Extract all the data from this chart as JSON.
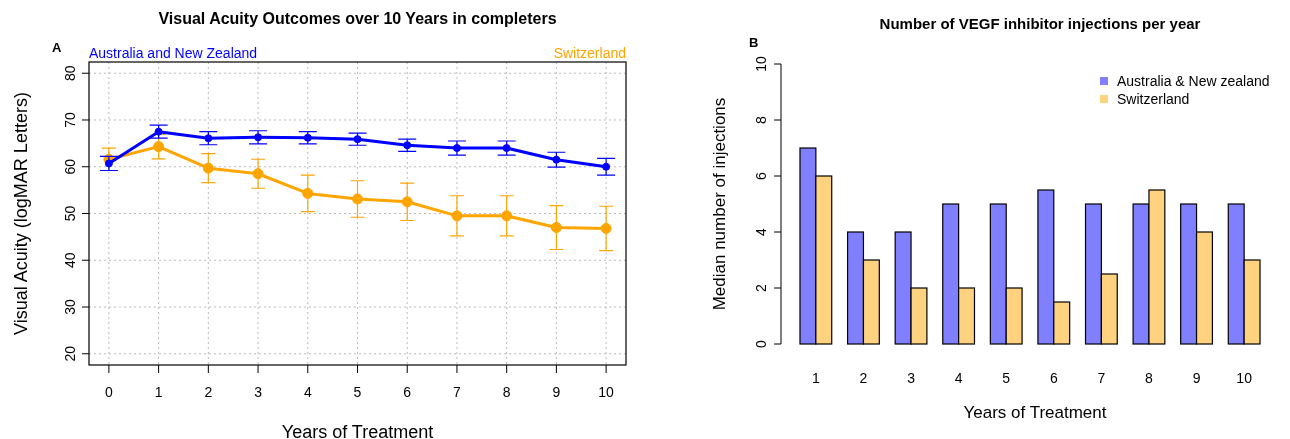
{
  "chart_data": [
    {
      "type": "line",
      "title": "Visual Acuity Outcomes over 10 Years in completers",
      "xlabel": "Years of Treatment",
      "ylabel": "Visual Acuity (logMAR Letters)",
      "annotations": [
        "A"
      ],
      "x": [
        0,
        1,
        2,
        3,
        4,
        5,
        6,
        7,
        8,
        9,
        10
      ],
      "xlim": [
        -0.4,
        10.4
      ],
      "xticks": [
        0,
        1,
        2,
        3,
        4,
        5,
        6,
        7,
        8,
        9,
        10
      ],
      "ylim": [
        17.6,
        82.4
      ],
      "yticks": [
        20,
        30,
        40,
        50,
        60,
        70,
        80
      ],
      "grid": true,
      "marker": "circle",
      "line_style": "solid",
      "series": [
        {
          "name": "Australia and New Zealand",
          "color": "#0000ff",
          "values": [
            60.7,
            67.5,
            66.1,
            66.3,
            66.2,
            65.9,
            64.6,
            64.0,
            64.0,
            61.5,
            60.0
          ],
          "errors": [
            1.5,
            1.4,
            1.4,
            1.4,
            1.3,
            1.3,
            1.3,
            1.5,
            1.5,
            1.6,
            1.8
          ]
        },
        {
          "name": "Switzerland",
          "color": "#ffa500",
          "values": [
            61.6,
            64.3,
            59.7,
            58.5,
            54.3,
            53.1,
            52.5,
            49.5,
            49.5,
            47.0,
            46.8
          ],
          "errors": [
            2.4,
            2.6,
            3.1,
            3.1,
            3.9,
            3.9,
            4.0,
            4.3,
            4.3,
            4.7,
            4.75
          ]
        }
      ]
    },
    {
      "type": "bar",
      "title": "Number of VEGF inhibitor injections per year",
      "xlabel": "Years of Treatment",
      "ylabel": "Median number of injections",
      "annotations": [
        "B"
      ],
      "categories": [
        "1",
        "2",
        "3",
        "4",
        "5",
        "6",
        "7",
        "8",
        "9",
        "10"
      ],
      "ylim": [
        0,
        10
      ],
      "yticks": [
        0,
        2,
        4,
        6,
        8,
        10
      ],
      "legend": "top right",
      "series": [
        {
          "name": "Australia & New zealand",
          "color": "#8080ff",
          "values": [
            7,
            4,
            4,
            5,
            5,
            5.5,
            5,
            5,
            5,
            5
          ]
        },
        {
          "name": "Switzerland",
          "color": "#ffd280",
          "values": [
            6,
            3,
            2,
            2,
            2,
            1.5,
            2.5,
            5.5,
            4,
            3
          ]
        }
      ]
    }
  ]
}
